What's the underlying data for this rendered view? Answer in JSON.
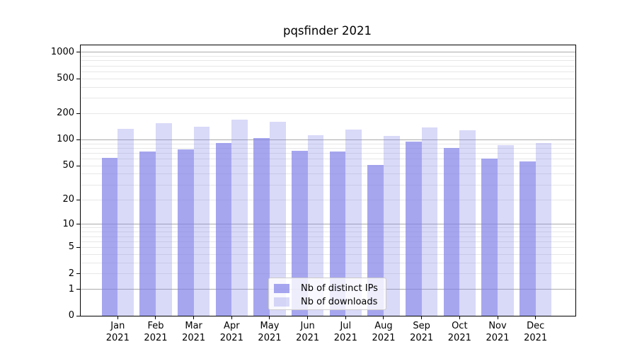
{
  "chart_data": {
    "type": "bar",
    "title": "pqsfinder 2021",
    "categories": [
      "Jan 2021",
      "Feb 2021",
      "Mar 2021",
      "Apr 2021",
      "May 2021",
      "Jun 2021",
      "Jul 2021",
      "Aug 2021",
      "Sep 2021",
      "Oct 2021",
      "Nov 2021",
      "Dec 2021"
    ],
    "month_labels": [
      "Jan",
      "Feb",
      "Mar",
      "Apr",
      "May",
      "Jun",
      "Jul",
      "Aug",
      "Sep",
      "Oct",
      "Nov",
      "Dec"
    ],
    "year_label": "2021",
    "series": [
      {
        "name": "Nb of distinct IPs",
        "values": [
          62,
          73,
          78,
          92,
          104,
          74,
          73,
          51,
          95,
          80,
          61,
          56
        ],
        "color": "#a6a6ef",
        "fill": "rgba(128,128,232,0.70)"
      },
      {
        "name": "Nb of downloads",
        "values": [
          134,
          155,
          140,
          171,
          161,
          112,
          130,
          111,
          139,
          128,
          86,
          92
        ],
        "color": "#d9d9f8",
        "fill": "rgba(128,128,232,0.30)"
      }
    ],
    "yscale": "log1p",
    "y_log_range": 3.08,
    "ylim": [
      0,
      1200
    ],
    "ytick_values": [
      0,
      1,
      2,
      5,
      10,
      20,
      50,
      100,
      200,
      500,
      1000
    ],
    "ytick_labels": [
      "0",
      "1",
      "2",
      "5",
      "10",
      "20",
      "50",
      "100",
      "200",
      "500",
      "1000"
    ],
    "major_gridline_values": [
      1,
      10,
      100,
      1000
    ],
    "minor_gridline_values": [
      2,
      3,
      4,
      5,
      6,
      7,
      8,
      9,
      20,
      30,
      40,
      50,
      60,
      70,
      80,
      90,
      200,
      300,
      400,
      500,
      600,
      700,
      800,
      900
    ],
    "grid": true,
    "legend_position": "lower-center",
    "colors": {
      "major_grid": "#ababab",
      "minor_grid": "#e7e7e7",
      "spine": "#000000",
      "background": "#ffffff"
    }
  }
}
